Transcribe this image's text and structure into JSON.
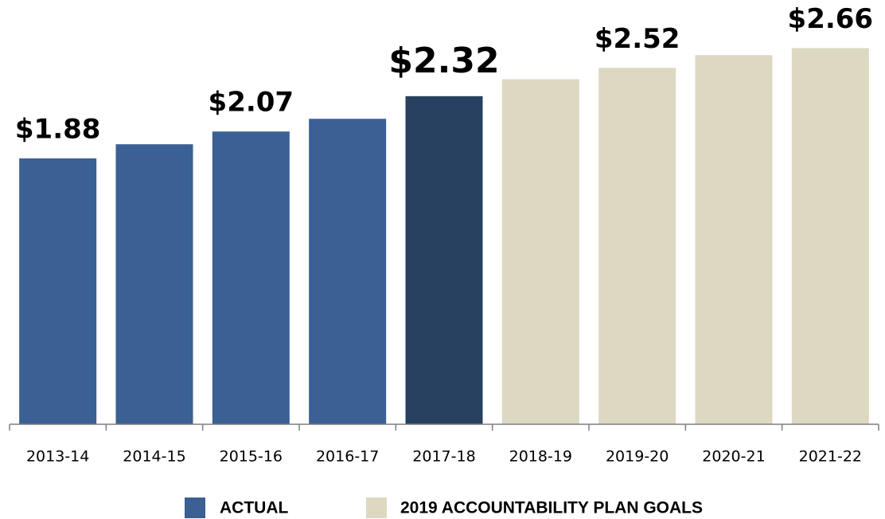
{
  "chart_data": {
    "type": "bar",
    "categories": [
      "2013-14",
      "2014-15",
      "2015-16",
      "2016-17",
      "2017-18",
      "2018-19",
      "2019-20",
      "2020-21",
      "2021-22"
    ],
    "series": [
      {
        "name": "ACTUAL",
        "color": "#3a6094",
        "values": [
          1.88,
          1.98,
          2.07,
          2.16,
          2.32,
          null,
          null,
          null,
          null
        ],
        "value_labels": [
          "$1.88",
          null,
          "$2.07",
          null,
          "$2.32",
          null,
          null,
          null,
          null
        ]
      },
      {
        "name": "2019 ACCOUNTABILITY PLAN GOALS",
        "color": "#ddd8c2",
        "values": [
          null,
          null,
          null,
          null,
          null,
          2.44,
          2.52,
          2.61,
          2.66
        ],
        "value_labels": [
          null,
          null,
          null,
          null,
          null,
          null,
          "$2.52",
          null,
          "$2.66"
        ]
      }
    ],
    "bar_colors": [
      "#3a6094",
      "#3a6094",
      "#3a6094",
      "#3a6094",
      "#27405f",
      "#ddd8c2",
      "#ddd8c2",
      "#ddd8c2",
      "#ddd8c2"
    ],
    "ylim": [
      0,
      3
    ]
  }
}
